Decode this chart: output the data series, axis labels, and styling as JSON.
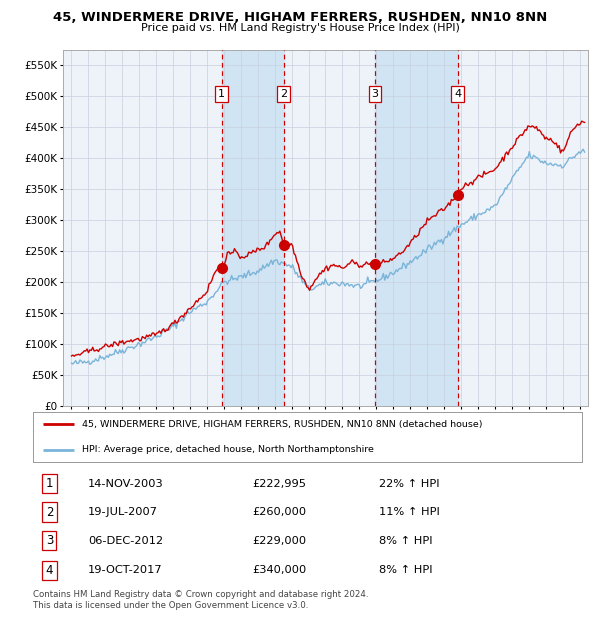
{
  "title": "45, WINDERMERE DRIVE, HIGHAM FERRERS, RUSHDEN, NN10 8NN",
  "subtitle": "Price paid vs. HM Land Registry's House Price Index (HPI)",
  "legend_line1": "45, WINDERMERE DRIVE, HIGHAM FERRERS, RUSHDEN, NN10 8NN (detached house)",
  "legend_line2": "HPI: Average price, detached house, North Northamptonshire",
  "footnote": "Contains HM Land Registry data © Crown copyright and database right 2024.\nThis data is licensed under the Open Government Licence v3.0.",
  "transactions": [
    {
      "num": 1,
      "date": "14-NOV-2003",
      "price": 222995,
      "year": 2003.87,
      "pct": "22% ↑ HPI"
    },
    {
      "num": 2,
      "date": "19-JUL-2007",
      "price": 260000,
      "year": 2007.54,
      "pct": "11% ↑ HPI"
    },
    {
      "num": 3,
      "date": "06-DEC-2012",
      "price": 229000,
      "year": 2012.92,
      "pct": "8% ↑ HPI"
    },
    {
      "num": 4,
      "date": "19-OCT-2017",
      "price": 340000,
      "year": 2017.8,
      "pct": "8% ↑ HPI"
    }
  ],
  "hpi_color": "#7ab4d8",
  "price_color": "#cc0000",
  "bg_color": "#ffffff",
  "plot_bg_color": "#eef3fa",
  "shade_color": "#d0e4f4",
  "grid_color": "#c8d0dc",
  "dashed_color": "#cc0000",
  "ylim": [
    0,
    575000
  ],
  "yticks": [
    0,
    50000,
    100000,
    150000,
    200000,
    250000,
    300000,
    350000,
    400000,
    450000,
    500000,
    550000
  ],
  "xlim_start": 1994.5,
  "xlim_end": 2025.5,
  "hpi_anchors_years": [
    1995,
    1996,
    1997,
    1998,
    1999,
    2000,
    2001,
    2002,
    2003,
    2004,
    2005,
    2006,
    2007,
    2008,
    2009,
    2010,
    2011,
    2012,
    2013,
    2014,
    2015,
    2016,
    2017,
    2018,
    2019,
    2020,
    2021,
    2022,
    2023,
    2024,
    2025
  ],
  "hpi_anchors_vals": [
    68000,
    72000,
    80000,
    90000,
    100000,
    112000,
    128000,
    152000,
    168000,
    200000,
    208000,
    218000,
    235000,
    225000,
    188000,
    198000,
    198000,
    193000,
    202000,
    215000,
    232000,
    252000,
    272000,
    292000,
    308000,
    322000,
    365000,
    405000,
    392000,
    388000,
    410000
  ],
  "price_anchors_years": [
    1995,
    1996,
    1997,
    1998,
    1999,
    2000,
    2001,
    2002,
    2003,
    2003.5,
    2003.87,
    2004.2,
    2004.8,
    2005,
    2005.5,
    2006,
    2006.5,
    2007.0,
    2007.3,
    2007.54,
    2008.0,
    2008.5,
    2009,
    2009.5,
    2010,
    2010.5,
    2011,
    2011.5,
    2012,
    2012.5,
    2012.92,
    2013,
    2013.5,
    2014,
    2014.5,
    2015,
    2016,
    2017,
    2017.8,
    2018,
    2019,
    2020,
    2021,
    2022,
    2022.5,
    2023,
    2023.5,
    2024,
    2024.5,
    2025
  ],
  "price_anchors_vals": [
    80000,
    88000,
    96000,
    103000,
    108000,
    115000,
    132000,
    158000,
    185000,
    218000,
    222995,
    245000,
    248000,
    240000,
    245000,
    252000,
    258000,
    278000,
    282000,
    260000,
    262000,
    218000,
    188000,
    208000,
    222000,
    228000,
    222000,
    232000,
    228000,
    229000,
    229000,
    228000,
    232000,
    238000,
    248000,
    262000,
    298000,
    318000,
    340000,
    352000,
    368000,
    382000,
    418000,
    452000,
    448000,
    432000,
    428000,
    408000,
    442000,
    458000
  ]
}
